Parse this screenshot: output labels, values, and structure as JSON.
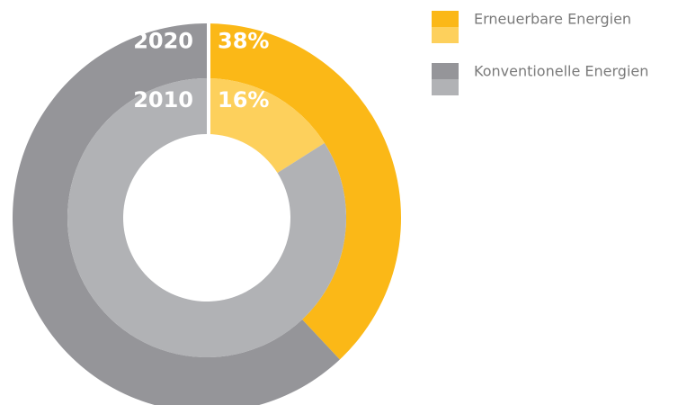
{
  "chart_data": {
    "type": "donut",
    "categories": [
      "Erneuerbare Energien",
      "Konventionelle Energien"
    ],
    "rings": [
      {
        "name": "2020",
        "values": [
          38,
          62
        ],
        "value_labels": [
          "38%",
          null
        ],
        "colors": [
          "#fbb817",
          "#959599"
        ]
      },
      {
        "name": "2010",
        "values": [
          16,
          84
        ],
        "value_labels": [
          "16%",
          null
        ],
        "colors": [
          "#fdd05c",
          "#b1b2b5"
        ]
      }
    ]
  }
}
